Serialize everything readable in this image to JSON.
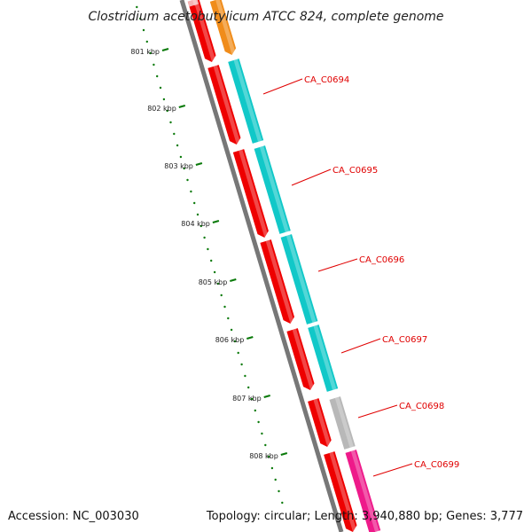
{
  "title": "Clostridium acetobutylicum ATCC 824, complete genome",
  "footer": {
    "accession": "Accession: NC_003030",
    "topology": "Topology: circular; Length: 3,940,880 bp; Genes: 3,777"
  },
  "kbp_labels": [
    "801 kbp",
    "802 kbp",
    "803 kbp",
    "804 kbp",
    "805 kbp",
    "806 kbp",
    "807 kbp",
    "808 kbp"
  ],
  "gene_labels": [
    "CA_C0694",
    "CA_C0695",
    "CA_C0696",
    "CA_C0697",
    "CA_C0698",
    "CA_C0699"
  ],
  "colors": {
    "backbone": "#777777",
    "tick": "#0a7a0a",
    "strand_red": "#ee0000",
    "cyan": "#11c8c8",
    "orange": "#f08c1a",
    "pink_light": "#f4b4b4",
    "gray": "#b8b8b8",
    "magenta": "#ee1a8a",
    "label_red": "#e00000"
  }
}
